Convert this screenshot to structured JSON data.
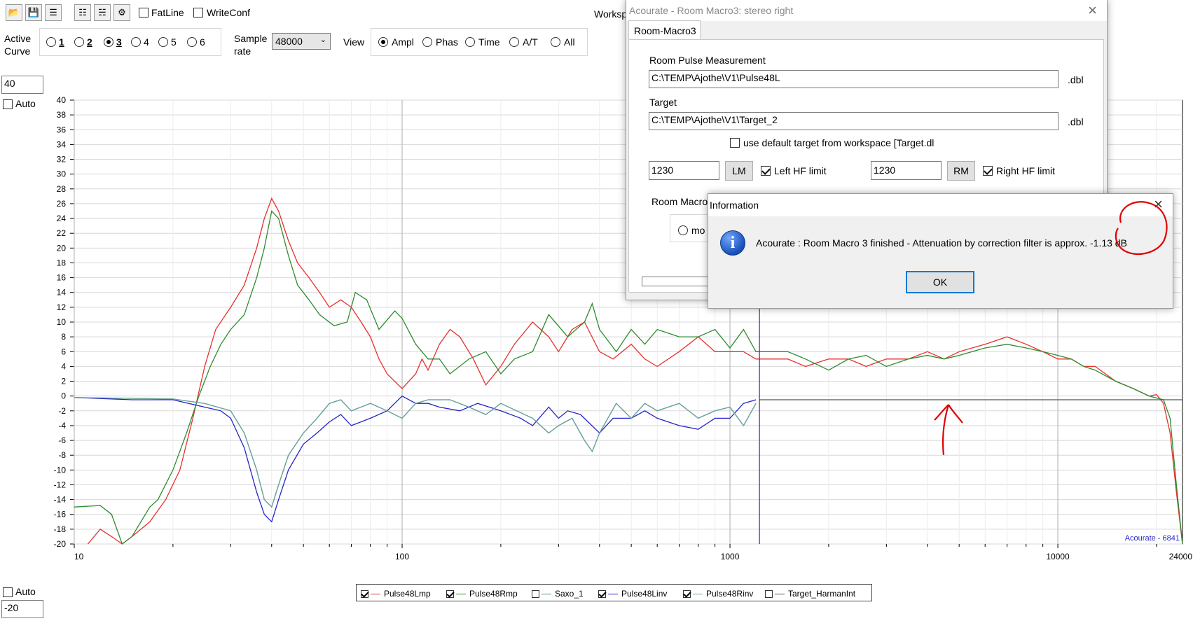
{
  "toolbar": {
    "icons": [
      "open-icon",
      "save-icon",
      "config-icon",
      "delete-icon",
      "trash-icon",
      "key-icon"
    ],
    "fatline_label": "FatLine",
    "writeconf_label": "WriteConf",
    "workspace_label": "Worksp"
  },
  "controls": {
    "active_curve_label": "Active Curve",
    "curves": [
      "1",
      "2",
      "3",
      "4",
      "5",
      "6"
    ],
    "selected_curve": "3",
    "sample_rate_label": "Sample rate",
    "sample_rate_value": "48000",
    "view_label": "View",
    "view_options": [
      "Ampl",
      "Phas",
      "Time",
      "A/T",
      "All"
    ],
    "selected_view": "Ampl"
  },
  "axis_controls": {
    "top_value": "40",
    "top_auto_label": "Auto",
    "bottom_auto_label": "Auto",
    "bottom_value": "-20"
  },
  "chart_data": {
    "type": "line",
    "xscale": "log",
    "xlim": [
      10,
      24000
    ],
    "ylim": [
      -20,
      40
    ],
    "x_tick_labels": [
      "10",
      "100",
      "1000",
      "10000",
      "24000"
    ],
    "y_ticks": [
      40,
      38,
      36,
      34,
      32,
      30,
      28,
      26,
      24,
      22,
      20,
      18,
      16,
      14,
      12,
      10,
      8,
      6,
      4,
      2,
      0,
      -2,
      -4,
      -6,
      -8,
      -10,
      -12,
      -14,
      -16,
      -18,
      -20
    ],
    "grid": true,
    "watermark": "Acourate - 6841",
    "cursor_x": 1230,
    "series": [
      {
        "name": "Pulse48Lmp",
        "color": "#e8302c",
        "checked": true,
        "points": [
          [
            11,
            -20
          ],
          [
            12,
            -18
          ],
          [
            13,
            -19
          ],
          [
            14,
            -20
          ],
          [
            15,
            -19
          ],
          [
            17,
            -17
          ],
          [
            19,
            -14
          ],
          [
            21,
            -10
          ],
          [
            23,
            -3
          ],
          [
            25,
            4
          ],
          [
            27,
            9
          ],
          [
            30,
            12
          ],
          [
            33,
            15
          ],
          [
            36,
            20
          ],
          [
            38,
            24
          ],
          [
            40,
            26.7
          ],
          [
            42,
            25
          ],
          [
            45,
            21
          ],
          [
            48,
            18
          ],
          [
            52,
            16
          ],
          [
            56,
            14
          ],
          [
            60,
            12
          ],
          [
            65,
            13
          ],
          [
            70,
            12
          ],
          [
            75,
            10
          ],
          [
            80,
            8
          ],
          [
            85,
            5
          ],
          [
            90,
            3
          ],
          [
            100,
            1
          ],
          [
            110,
            3
          ],
          [
            115,
            5
          ],
          [
            120,
            3.5
          ],
          [
            130,
            7
          ],
          [
            140,
            9
          ],
          [
            150,
            8
          ],
          [
            165,
            5
          ],
          [
            180,
            1.5
          ],
          [
            200,
            4
          ],
          [
            220,
            7
          ],
          [
            250,
            10
          ],
          [
            280,
            8
          ],
          [
            300,
            6
          ],
          [
            330,
            9
          ],
          [
            360,
            10
          ],
          [
            400,
            6
          ],
          [
            440,
            5
          ],
          [
            500,
            7
          ],
          [
            550,
            5
          ],
          [
            600,
            4
          ],
          [
            700,
            6
          ],
          [
            800,
            8
          ],
          [
            900,
            6
          ],
          [
            1000,
            6
          ],
          [
            1100,
            6
          ],
          [
            1200,
            5
          ],
          [
            1300,
            5
          ],
          [
            1500,
            5
          ],
          [
            1700,
            4
          ],
          [
            2000,
            5
          ],
          [
            2300,
            5
          ],
          [
            2600,
            4
          ],
          [
            3000,
            5
          ],
          [
            3500,
            5
          ],
          [
            4000,
            6
          ],
          [
            4500,
            5
          ],
          [
            5000,
            6
          ],
          [
            6000,
            7
          ],
          [
            7000,
            8
          ],
          [
            8000,
            7
          ],
          [
            9000,
            6
          ],
          [
            10000,
            5
          ],
          [
            11000,
            5
          ],
          [
            12000,
            4
          ],
          [
            13000,
            4
          ],
          [
            15000,
            2
          ],
          [
            17000,
            1
          ],
          [
            19000,
            0
          ],
          [
            20000,
            0.2
          ],
          [
            21000,
            -1
          ],
          [
            22000,
            -5
          ],
          [
            23000,
            -13
          ],
          [
            24000,
            -20
          ]
        ]
      },
      {
        "name": "Pulse48Rmp",
        "color": "#2e8b2e",
        "checked": true,
        "points": [
          [
            10,
            -15
          ],
          [
            12,
            -14.8
          ],
          [
            13,
            -16
          ],
          [
            14,
            -20
          ],
          [
            15,
            -19
          ],
          [
            17,
            -15
          ],
          [
            18,
            -14
          ],
          [
            20,
            -10
          ],
          [
            22,
            -5
          ],
          [
            24,
            0
          ],
          [
            26,
            4
          ],
          [
            28,
            7
          ],
          [
            30,
            9
          ],
          [
            33,
            11
          ],
          [
            36,
            16
          ],
          [
            38,
            20
          ],
          [
            40,
            25
          ],
          [
            42,
            24
          ],
          [
            45,
            19
          ],
          [
            48,
            15
          ],
          [
            52,
            13
          ],
          [
            56,
            11
          ],
          [
            62,
            9.5
          ],
          [
            68,
            10
          ],
          [
            72,
            14
          ],
          [
            78,
            13
          ],
          [
            85,
            9
          ],
          [
            95,
            11.5
          ],
          [
            100,
            10.5
          ],
          [
            110,
            7
          ],
          [
            120,
            5
          ],
          [
            130,
            5
          ],
          [
            140,
            3
          ],
          [
            160,
            5
          ],
          [
            180,
            6
          ],
          [
            200,
            3
          ],
          [
            220,
            5
          ],
          [
            250,
            6
          ],
          [
            280,
            11
          ],
          [
            320,
            8
          ],
          [
            360,
            10
          ],
          [
            380,
            12.5
          ],
          [
            400,
            9
          ],
          [
            450,
            6
          ],
          [
            500,
            9
          ],
          [
            550,
            7
          ],
          [
            600,
            9
          ],
          [
            700,
            8
          ],
          [
            800,
            8
          ],
          [
            900,
            9
          ],
          [
            1000,
            6.5
          ],
          [
            1100,
            9
          ],
          [
            1200,
            6
          ],
          [
            1300,
            6
          ],
          [
            1500,
            6
          ],
          [
            1700,
            5
          ],
          [
            2000,
            3.5
          ],
          [
            2300,
            5
          ],
          [
            2600,
            5.5
          ],
          [
            3000,
            4
          ],
          [
            3500,
            5
          ],
          [
            4000,
            5.5
          ],
          [
            4500,
            5
          ],
          [
            5000,
            5.5
          ],
          [
            6000,
            6.5
          ],
          [
            7000,
            7
          ],
          [
            8000,
            6.5
          ],
          [
            9000,
            6
          ],
          [
            10000,
            5.5
          ],
          [
            11000,
            5
          ],
          [
            12000,
            4
          ],
          [
            13000,
            3.5
          ],
          [
            15000,
            2
          ],
          [
            17000,
            1
          ],
          [
            19000,
            0
          ],
          [
            21000,
            -0.5
          ],
          [
            22000,
            -3
          ],
          [
            23000,
            -12
          ],
          [
            24000,
            -20
          ]
        ]
      },
      {
        "name": "Saxo_1",
        "color": "#5a8a8a",
        "checked": false,
        "points": [
          [
            10,
            -0.2
          ],
          [
            20,
            -0.4
          ],
          [
            25,
            -1
          ],
          [
            30,
            -2
          ],
          [
            33,
            -5
          ],
          [
            36,
            -10
          ],
          [
            38,
            -14
          ],
          [
            40,
            -15
          ],
          [
            42,
            -12
          ],
          [
            45,
            -8
          ],
          [
            50,
            -5
          ],
          [
            55,
            -3
          ],
          [
            60,
            -1
          ],
          [
            65,
            -0.5
          ],
          [
            70,
            -2
          ],
          [
            80,
            -1
          ],
          [
            90,
            -2
          ],
          [
            100,
            -3
          ],
          [
            110,
            -1
          ],
          [
            120,
            -0.5
          ],
          [
            140,
            -0.5
          ],
          [
            160,
            -1.5
          ],
          [
            180,
            -2.5
          ],
          [
            200,
            -1
          ],
          [
            250,
            -3
          ],
          [
            280,
            -5
          ],
          [
            300,
            -4
          ],
          [
            330,
            -3
          ],
          [
            360,
            -6
          ],
          [
            380,
            -7.5
          ],
          [
            400,
            -5
          ],
          [
            450,
            -1
          ],
          [
            500,
            -3
          ],
          [
            550,
            -1
          ],
          [
            600,
            -2
          ],
          [
            700,
            -1
          ],
          [
            800,
            -3
          ],
          [
            900,
            -2
          ],
          [
            1000,
            -1.5
          ],
          [
            1100,
            -4
          ],
          [
            1200,
            -1
          ]
        ]
      },
      {
        "name": "Pulse48Linv",
        "color": "#2424c8",
        "checked": true,
        "points": [
          [
            10,
            -0.2
          ],
          [
            15,
            -0.5
          ],
          [
            20,
            -0.5
          ],
          [
            25,
            -1.5
          ],
          [
            28,
            -2
          ],
          [
            30,
            -3
          ],
          [
            33,
            -7
          ],
          [
            36,
            -13
          ],
          [
            38,
            -16
          ],
          [
            40,
            -17
          ],
          [
            42,
            -14
          ],
          [
            45,
            -10
          ],
          [
            50,
            -6.5
          ],
          [
            55,
            -5
          ],
          [
            60,
            -3.5
          ],
          [
            65,
            -2.5
          ],
          [
            70,
            -4
          ],
          [
            80,
            -3
          ],
          [
            90,
            -2
          ],
          [
            100,
            0
          ],
          [
            110,
            -1
          ],
          [
            120,
            -1
          ],
          [
            130,
            -1.5
          ],
          [
            150,
            -2
          ],
          [
            170,
            -1
          ],
          [
            200,
            -2
          ],
          [
            230,
            -3
          ],
          [
            250,
            -4
          ],
          [
            280,
            -1.5
          ],
          [
            300,
            -3
          ],
          [
            320,
            -2
          ],
          [
            350,
            -2.5
          ],
          [
            400,
            -5
          ],
          [
            440,
            -3
          ],
          [
            500,
            -3
          ],
          [
            550,
            -2
          ],
          [
            600,
            -3
          ],
          [
            700,
            -4
          ],
          [
            800,
            -4.5
          ],
          [
            900,
            -3
          ],
          [
            1000,
            -3
          ],
          [
            1100,
            -1
          ],
          [
            1200,
            -0.5
          ]
        ]
      },
      {
        "name": "Pulse48Rinv",
        "color": "#6aa5a0",
        "checked": true,
        "points": [
          [
            10,
            -0.2
          ],
          [
            20,
            -0.4
          ],
          [
            25,
            -1
          ],
          [
            30,
            -2
          ],
          [
            33,
            -5
          ],
          [
            36,
            -10
          ],
          [
            38,
            -14
          ],
          [
            40,
            -15
          ],
          [
            42,
            -12
          ],
          [
            45,
            -8
          ],
          [
            50,
            -5
          ],
          [
            55,
            -3
          ],
          [
            60,
            -1
          ],
          [
            65,
            -0.5
          ],
          [
            70,
            -2
          ],
          [
            80,
            -1
          ],
          [
            90,
            -2
          ],
          [
            100,
            -3
          ],
          [
            110,
            -1
          ],
          [
            120,
            -0.5
          ],
          [
            140,
            -0.5
          ],
          [
            160,
            -1.5
          ],
          [
            180,
            -2.5
          ],
          [
            200,
            -1
          ],
          [
            250,
            -3
          ],
          [
            280,
            -5
          ],
          [
            300,
            -4
          ],
          [
            330,
            -3
          ],
          [
            360,
            -6
          ],
          [
            380,
            -7.5
          ],
          [
            400,
            -5
          ],
          [
            450,
            -1
          ],
          [
            500,
            -3
          ],
          [
            550,
            -1
          ],
          [
            600,
            -2
          ],
          [
            700,
            -1
          ],
          [
            800,
            -3
          ],
          [
            900,
            -2
          ],
          [
            1000,
            -1.5
          ],
          [
            1100,
            -4
          ],
          [
            1200,
            -1
          ]
        ]
      },
      {
        "name": "Target_HarmanInt",
        "color": "#555555",
        "checked": false,
        "points": [
          [
            1230,
            -0.5
          ],
          [
            24000,
            -0.5
          ]
        ]
      }
    ]
  },
  "room_macro_window": {
    "title": "Acourate - Room Macro3: stereo right",
    "tab": "Room-Macro3",
    "pulse_label": "Room Pulse Measurement",
    "pulse_path": "C:\\TEMP\\Ajothe\\V1\\Pulse48L",
    "pulse_ext": ".dbl",
    "target_label": "Target",
    "target_path": "C:\\TEMP\\Ajothe\\V1\\Target_2",
    "target_ext": ".dbl",
    "default_target_label": "use default target from workspace [Target.dl",
    "left_value": "1230",
    "lm_label": "LM",
    "left_hf_label": "Left HF limit",
    "right_value": "1230",
    "rm_label": "RM",
    "right_hf_label": "Right HF limit",
    "room_macro_label": "Room Macro",
    "mode_label": "mo"
  },
  "info_dialog": {
    "title": "Information",
    "message": "Acourate :  Room Macro 3 finished - Attenuation by correction filter is approx. -1.13 dB",
    "ok_label": "OK"
  },
  "colors": {
    "annotation": "#e00000",
    "cursor": "#2a2ac8",
    "accent": "#0078d7"
  }
}
